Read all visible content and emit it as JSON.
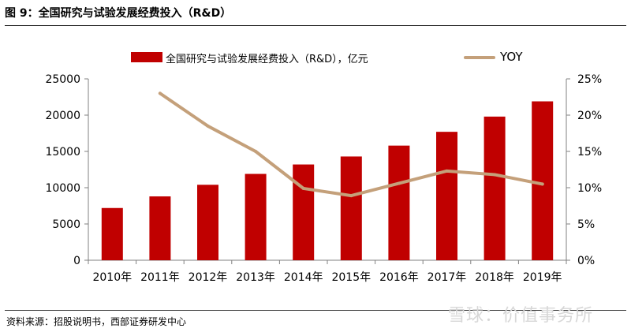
{
  "header": {
    "title": "图 9：全国研究与试验发展经费投入（R&D）"
  },
  "footer": {
    "source": "资料来源：招股说明书，西部证券研发中心",
    "watermark": "雪球：价值事务所"
  },
  "chart_data": {
    "type": "bar",
    "categories": [
      "2010年",
      "2011年",
      "2012年",
      "2013年",
      "2014年",
      "2015年",
      "2016年",
      "2017年",
      "2018年",
      "2019年"
    ],
    "series": [
      {
        "name": "全国研究与试验发展经费投入（R&D），亿元",
        "type": "bar",
        "axis": "left",
        "color": "#c00000",
        "values": [
          7200,
          8800,
          10400,
          11900,
          13200,
          14300,
          15800,
          17700,
          19800,
          21900
        ]
      },
      {
        "name": "YOY",
        "type": "line",
        "axis": "right",
        "color": "#c4a07a",
        "values": [
          null,
          23.0,
          18.5,
          15.0,
          9.9,
          8.9,
          10.6,
          12.3,
          11.8,
          10.5
        ]
      }
    ],
    "y_left": {
      "min": 0,
      "max": 25000,
      "ticks": [
        "0",
        "5000",
        "10000",
        "15000",
        "20000",
        "25000"
      ]
    },
    "y_right": {
      "min": 0,
      "max": 25,
      "ticks": [
        "0%",
        "5%",
        "10%",
        "15%",
        "20%",
        "25%"
      ]
    },
    "grid": false,
    "legend_position": "top"
  }
}
